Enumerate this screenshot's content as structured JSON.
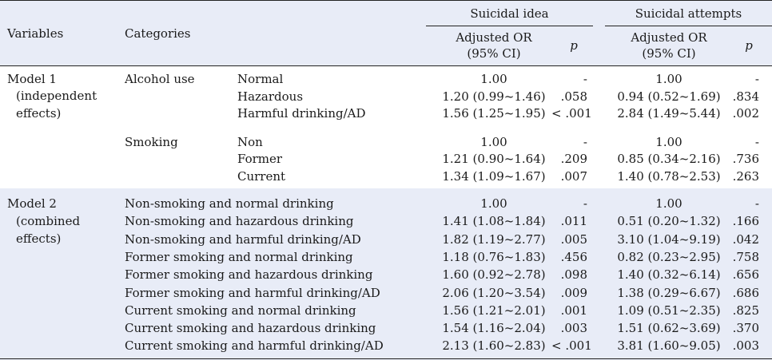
{
  "header": {
    "variables": "Variables",
    "categories": "Categories",
    "group_idea": "Suicidal idea",
    "group_attempts": "Suicidal attempts",
    "adjusted_or_line1": "Adjusted OR",
    "adjusted_or_line2": "(95% CI)",
    "p": "p"
  },
  "model1": {
    "label": [
      "Model 1",
      "(independent",
      "effects)"
    ],
    "groups": [
      {
        "name": "Alcohol use",
        "rows": [
          {
            "sub": "Normal",
            "idea_or": "1.00",
            "idea_p": "-",
            "att_or": "1.00",
            "att_p": "-"
          },
          {
            "sub": "Hazardous",
            "idea_or": "1.20 (0.99~1.46)",
            "idea_p": ".058",
            "att_or": "0.94 (0.52~1.69)",
            "att_p": ".834"
          },
          {
            "sub": "Harmful drinking/AD",
            "idea_or": "1.56 (1.25~1.95)",
            "idea_p": "< .001",
            "att_or": "2.84 (1.49~5.44)",
            "att_p": ".002"
          }
        ]
      },
      {
        "name": "Smoking",
        "rows": [
          {
            "sub": "Non",
            "idea_or": "1.00",
            "idea_p": "-",
            "att_or": "1.00",
            "att_p": "-"
          },
          {
            "sub": "Former",
            "idea_or": "1.21 (0.90~1.64)",
            "idea_p": ".209",
            "att_or": "0.85 (0.34~2.16)",
            "att_p": ".736"
          },
          {
            "sub": "Current",
            "idea_or": "1.34 (1.09~1.67)",
            "idea_p": ".007",
            "att_or": "1.40 (0.78~2.53)",
            "att_p": ".263"
          }
        ]
      }
    ]
  },
  "model2": {
    "label": [
      "Model 2",
      "(combined",
      "effects)"
    ],
    "rows": [
      {
        "cat": "Non-smoking and normal drinking",
        "idea_or": "1.00",
        "idea_p": "-",
        "att_or": "1.00",
        "att_p": "-"
      },
      {
        "cat": "Non-smoking and hazardous drinking",
        "idea_or": "1.41 (1.08~1.84)",
        "idea_p": ".011",
        "att_or": "0.51 (0.20~1.32)",
        "att_p": ".166"
      },
      {
        "cat": "Non-smoking and harmful drinking/AD",
        "idea_or": "1.82 (1.19~2.77)",
        "idea_p": ".005",
        "att_or": "3.10 (1.04~9.19)",
        "att_p": ".042"
      },
      {
        "cat": "Former smoking and normal drinking",
        "idea_or": "1.18 (0.76~1.83)",
        "idea_p": ".456",
        "att_or": "0.82 (0.23~2.95)",
        "att_p": ".758"
      },
      {
        "cat": "Former smoking and hazardous drinking",
        "idea_or": "1.60 (0.92~2.78)",
        "idea_p": ".098",
        "att_or": "1.40 (0.32~6.14)",
        "att_p": ".656"
      },
      {
        "cat": "Former smoking and harmful drinking/AD",
        "idea_or": "2.06 (1.20~3.54)",
        "idea_p": ".009",
        "att_or": "1.38 (0.29~6.67)",
        "att_p": ".686"
      },
      {
        "cat": "Current smoking and normal drinking",
        "idea_or": "1.56 (1.21~2.01)",
        "idea_p": ".001",
        "att_or": "1.09 (0.51~2.35)",
        "att_p": ".825"
      },
      {
        "cat": "Current smoking and hazardous drinking",
        "idea_or": "1.54 (1.16~2.04)",
        "idea_p": ".003",
        "att_or": "1.51 (0.62~3.69)",
        "att_p": ".370"
      },
      {
        "cat": "Current smoking and harmful drinking/AD",
        "idea_or": "2.13 (1.60~2.83)",
        "idea_p": "< .001",
        "att_or": "3.81 (1.60~9.05)",
        "att_p": ".003"
      }
    ]
  }
}
